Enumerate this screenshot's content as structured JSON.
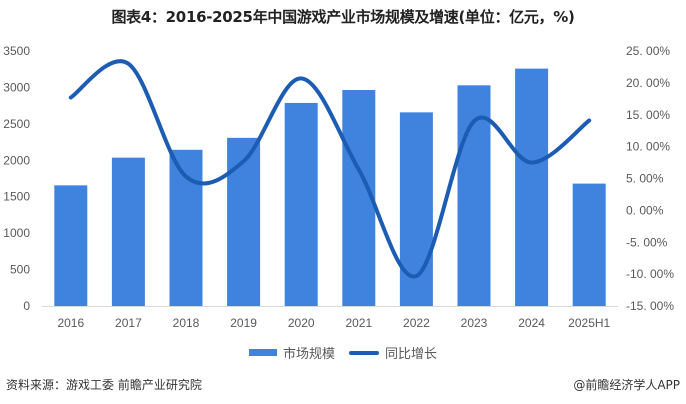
{
  "title": "图表4：2016-2025年中国游戏产业市场规模及增速(单位：亿元，%)",
  "legend": {
    "bar_label": "市场规模",
    "line_label": "同比增长"
  },
  "source": "资料来源：游戏工委 前瞻产业研究院",
  "credit": "@前瞻经济学人APP",
  "colors": {
    "bar": "#3f83de",
    "line": "#1c5cb3",
    "axis_text": "#595959",
    "baseline": "#d9d9d9"
  },
  "chart_data": {
    "type": "bar+line",
    "title": "图表4：2016-2025年中国游戏产业市场规模及增速(单位：亿元，%)",
    "xlabel": "",
    "ylabel": "亿元",
    "y2label": "%",
    "categories": [
      "2016",
      "2017",
      "2018",
      "2019",
      "2020",
      "2021",
      "2022",
      "2023",
      "2024",
      "2025H1"
    ],
    "series": [
      {
        "name": "市场规模",
        "type": "bar",
        "axis": "left",
        "values": [
          1656,
          2036,
          2144,
          2308,
          2787,
          2965,
          2658,
          3029,
          3258,
          1680
        ]
      },
      {
        "name": "同比增长",
        "type": "line",
        "axis": "right",
        "values": [
          17.7,
          23.0,
          5.3,
          7.7,
          20.7,
          6.4,
          -10.3,
          14.0,
          7.5,
          14.1
        ]
      }
    ],
    "ylim": [
      0,
      3500
    ],
    "y_ticks": [
      "0",
      "500",
      "1000",
      "1500",
      "2000",
      "2500",
      "3000",
      "3500"
    ],
    "y2lim": [
      -15,
      25
    ],
    "y2_ticks": [
      "-15.00%",
      "-10.00%",
      "-5.00%",
      "0.00%",
      "5.00%",
      "10.00%",
      "15.00%",
      "20.00%",
      "25.00%"
    ],
    "grid": false,
    "legend_position": "bottom"
  }
}
